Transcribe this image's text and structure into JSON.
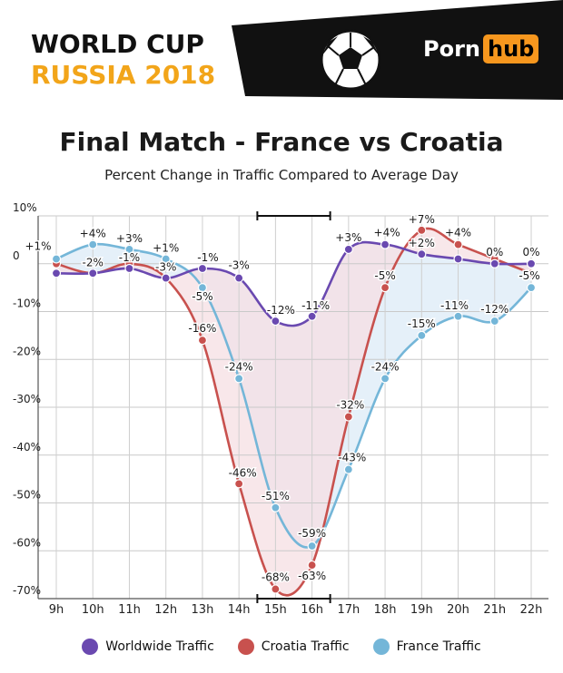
{
  "header": {
    "title_line1": "WORLD CUP",
    "title_line2": "RUSSIA 2018",
    "brand_part1": "Porn",
    "brand_part2": "hub",
    "accent_color": "#f2a51a",
    "brand_accent": "#f7971e",
    "logo_icon": "soccer-ball-icon"
  },
  "chart_data": {
    "type": "line",
    "title": "Final Match - France vs Croatia",
    "subtitle": "Percent Change in Traffic Compared to Average Day",
    "categories": [
      "9h",
      "10h",
      "11h",
      "12h",
      "13h",
      "14h",
      "15h",
      "16h",
      "17h",
      "18h",
      "19h",
      "20h",
      "21h",
      "22h"
    ],
    "y_ticks": [
      {
        "value": 10,
        "label": "10%"
      },
      {
        "value": 0,
        "label": "0"
      },
      {
        "value": -10,
        "label": "-10%"
      },
      {
        "value": -20,
        "label": "-20%"
      },
      {
        "value": -30,
        "label": "-30%"
      },
      {
        "value": -40,
        "label": "-40%"
      },
      {
        "value": -50,
        "label": "-50%"
      },
      {
        "value": -60,
        "label": "-60%"
      },
      {
        "value": -70,
        "label": "-70%"
      }
    ],
    "ylim": [
      -70,
      10
    ],
    "grid": true,
    "legend_position": "bottom",
    "match_period": {
      "start": "15h",
      "end": "16h"
    },
    "series": [
      {
        "name": "Worldwide Traffic",
        "color": "#6a49b0",
        "values": [
          -2,
          -2,
          -1,
          -3,
          -1,
          -3,
          -12,
          -11,
          3,
          4,
          2,
          1,
          0,
          0
        ],
        "labels": [
          "",
          "-2%",
          "-1%",
          "-3%",
          "-1%",
          "-3%",
          "-12%",
          "-11%",
          "+3%",
          "+4%",
          "+2%",
          "",
          "0%",
          "0%"
        ]
      },
      {
        "name": "Croatia Traffic",
        "color": "#c8514e",
        "values": [
          0,
          -2,
          0,
          -3,
          -16,
          -46,
          -68,
          -63,
          -32,
          -5,
          7,
          4,
          1,
          -2
        ],
        "labels": [
          "",
          "",
          "",
          "",
          "-16%",
          "-46%",
          "-68%",
          "-63%",
          "-32%",
          "-5%",
          "+7%",
          "+4%",
          "",
          ""
        ]
      },
      {
        "name": "France Traffic",
        "color": "#74b6d8",
        "values": [
          1,
          4,
          3,
          1,
          -5,
          -24,
          -51,
          -59,
          -43,
          -24,
          -15,
          -11,
          -12,
          -5
        ],
        "labels": [
          "+1%",
          "+4%",
          "+3%",
          "+1%",
          "-5%",
          "-24%",
          "-51%",
          "-59%",
          "-43%",
          "-24%",
          "-15%",
          "-11%",
          "-12%",
          "-5%"
        ]
      }
    ]
  },
  "legend": {
    "items": [
      {
        "label": "Worldwide Traffic",
        "color": "#6a49b0"
      },
      {
        "label": "Croatia Traffic",
        "color": "#c8514e"
      },
      {
        "label": "France Traffic",
        "color": "#74b6d8"
      }
    ]
  }
}
